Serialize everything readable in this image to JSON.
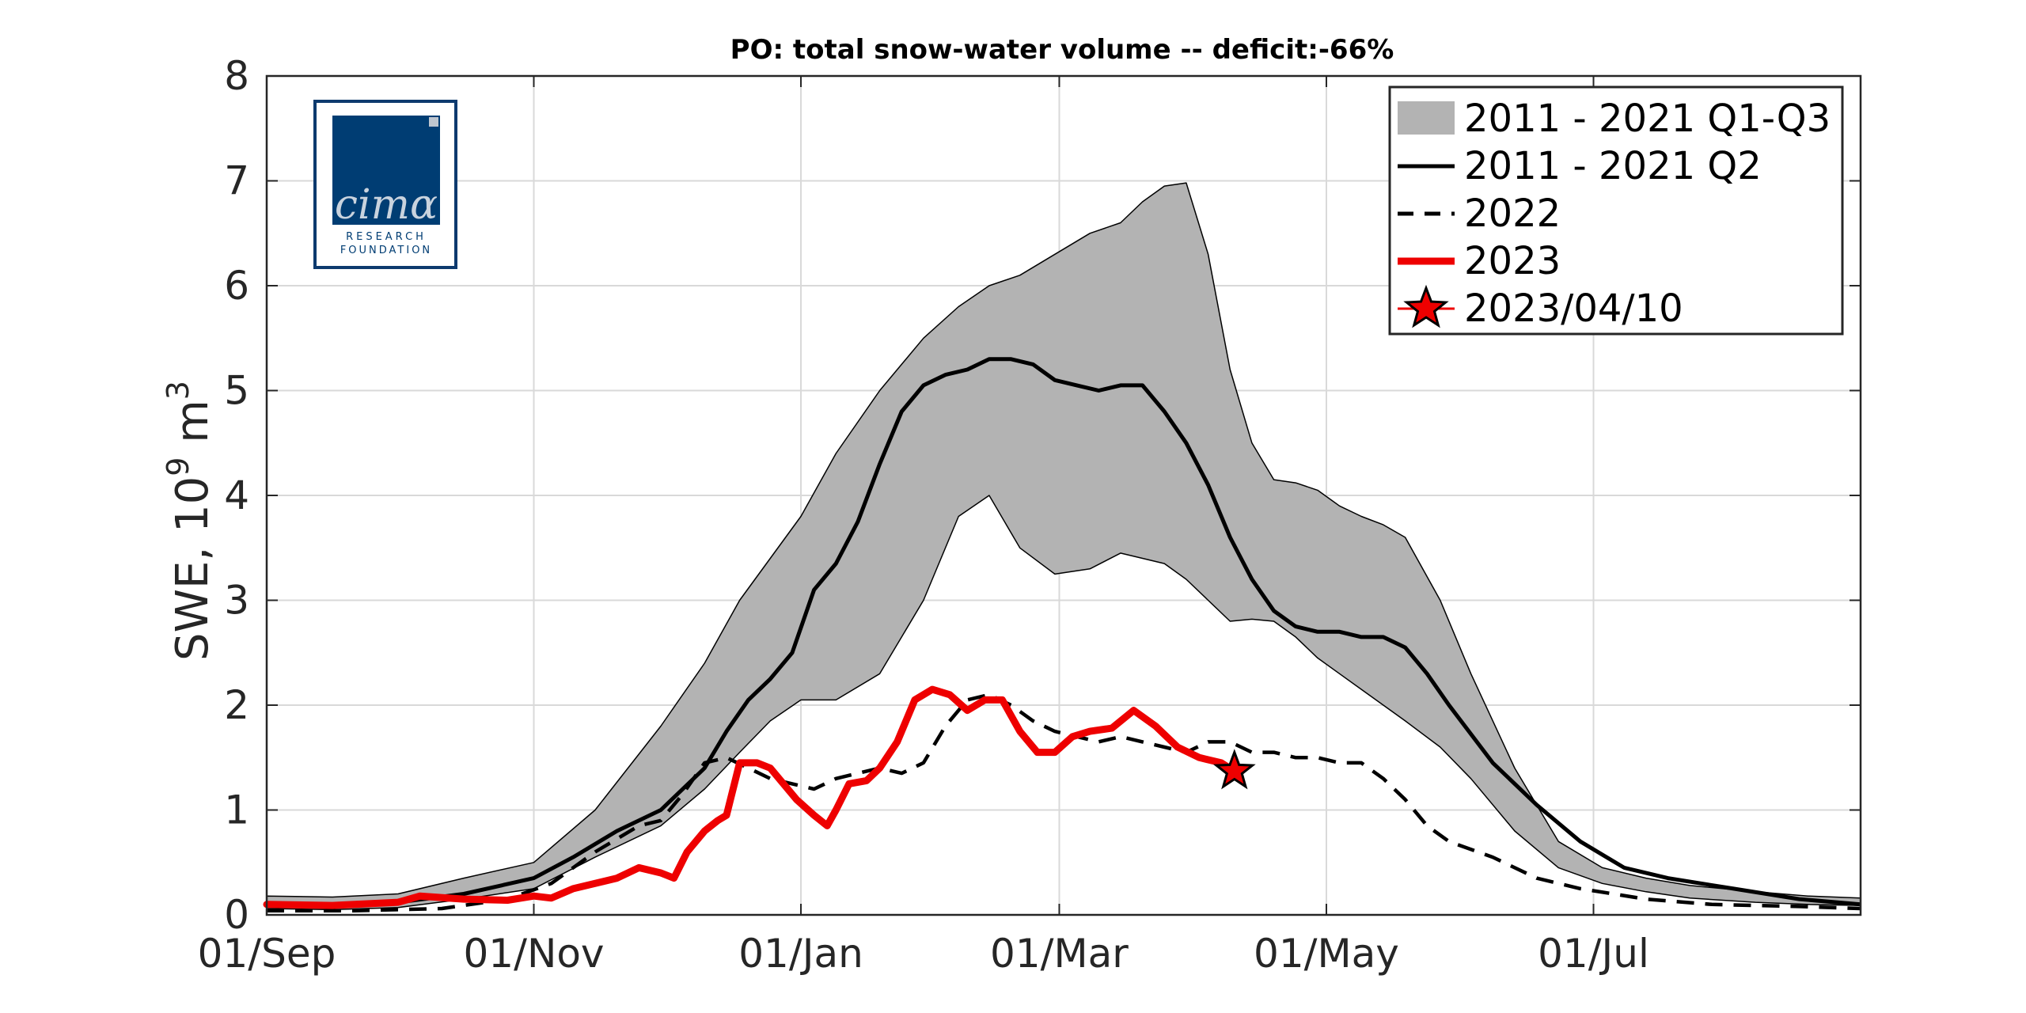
{
  "chart_data": {
    "type": "area",
    "title": "PO: total snow-water volume -- deficit:-66%",
    "xlabel": "",
    "ylabel": "SWE, 10",
    "ylabel_exponent": "9",
    "ylabel_unit": " m",
    "ylabel_unit_exponent": "3",
    "xlim": [
      0,
      364
    ],
    "ylim": [
      0,
      8
    ],
    "grid": true,
    "legend_position": "top-right",
    "x_ticks": [
      {
        "day": 0,
        "label": "01/Sep"
      },
      {
        "day": 61,
        "label": "01/Nov"
      },
      {
        "day": 122,
        "label": "01/Jan"
      },
      {
        "day": 181,
        "label": "01/Mar"
      },
      {
        "day": 242,
        "label": "01/May"
      },
      {
        "day": 303,
        "label": "01/Jul"
      }
    ],
    "x_grid_days": [
      0,
      61,
      122,
      181,
      242,
      303,
      364
    ],
    "y_ticks": [
      0,
      1,
      2,
      3,
      4,
      5,
      6,
      7,
      8
    ],
    "series": [
      {
        "name": "2011 - 2021 Q1-Q3",
        "kind": "band",
        "color": "#b3b3b3",
        "x": [
          0,
          15,
          30,
          45,
          61,
          75,
          90,
          100,
          108,
          115,
          122,
          130,
          140,
          150,
          158,
          165,
          172,
          180,
          188,
          195,
          200,
          205,
          210,
          215,
          220,
          225,
          230,
          235,
          240,
          245,
          250,
          255,
          260,
          268,
          275,
          285,
          295,
          305,
          315,
          325,
          340,
          352,
          364
        ],
        "upper": [
          0.18,
          0.17,
          0.2,
          0.35,
          0.5,
          1.0,
          1.8,
          2.4,
          3.0,
          3.4,
          3.8,
          4.4,
          5.0,
          5.5,
          5.8,
          6.0,
          6.1,
          6.3,
          6.5,
          6.6,
          6.8,
          6.95,
          6.98,
          6.3,
          5.2,
          4.5,
          4.15,
          4.12,
          4.05,
          3.9,
          3.8,
          3.72,
          3.6,
          3.0,
          2.3,
          1.4,
          0.7,
          0.45,
          0.35,
          0.28,
          0.22,
          0.18,
          0.16
        ],
        "lower": [
          0.06,
          0.05,
          0.07,
          0.15,
          0.25,
          0.55,
          0.85,
          1.2,
          1.55,
          1.85,
          2.05,
          2.05,
          2.3,
          3.0,
          3.8,
          4.0,
          3.5,
          3.25,
          3.3,
          3.45,
          3.4,
          3.35,
          3.2,
          3.0,
          2.8,
          2.82,
          2.8,
          2.65,
          2.45,
          2.3,
          2.15,
          2.0,
          1.85,
          1.6,
          1.3,
          0.8,
          0.45,
          0.3,
          0.22,
          0.16,
          0.12,
          0.1,
          0.09
        ]
      },
      {
        "name": "2011 - 2021 Q2",
        "kind": "line",
        "color": "#000000",
        "dash": "solid",
        "x": [
          0,
          15,
          30,
          45,
          61,
          70,
          80,
          90,
          100,
          105,
          110,
          115,
          120,
          125,
          130,
          135,
          140,
          145,
          150,
          155,
          160,
          165,
          170,
          175,
          180,
          185,
          190,
          195,
          200,
          205,
          210,
          215,
          220,
          225,
          230,
          235,
          240,
          245,
          250,
          255,
          260,
          265,
          270,
          280,
          290,
          300,
          310,
          320,
          335,
          350,
          364
        ],
        "y": [
          0.1,
          0.1,
          0.12,
          0.2,
          0.35,
          0.55,
          0.8,
          1.0,
          1.4,
          1.75,
          2.05,
          2.25,
          2.5,
          3.1,
          3.35,
          3.75,
          4.3,
          4.8,
          5.05,
          5.15,
          5.2,
          5.3,
          5.3,
          5.25,
          5.1,
          5.05,
          5.0,
          5.05,
          5.05,
          4.8,
          4.5,
          4.1,
          3.6,
          3.2,
          2.9,
          2.75,
          2.7,
          2.7,
          2.65,
          2.65,
          2.55,
          2.3,
          2.0,
          1.45,
          1.05,
          0.7,
          0.45,
          0.35,
          0.25,
          0.15,
          0.1
        ]
      },
      {
        "name": "2022",
        "kind": "line",
        "color": "#000000",
        "dash": "dashed",
        "x": [
          0,
          20,
          40,
          55,
          65,
          75,
          85,
          90,
          95,
          100,
          105,
          110,
          115,
          120,
          125,
          130,
          135,
          140,
          145,
          150,
          155,
          160,
          165,
          170,
          175,
          180,
          185,
          190,
          195,
          200,
          205,
          210,
          215,
          220,
          225,
          230,
          235,
          240,
          245,
          250,
          255,
          260,
          265,
          270,
          280,
          290,
          300,
          315,
          330,
          350,
          364
        ],
        "y": [
          0.04,
          0.04,
          0.06,
          0.15,
          0.3,
          0.6,
          0.85,
          0.9,
          1.15,
          1.45,
          1.5,
          1.4,
          1.3,
          1.25,
          1.2,
          1.3,
          1.35,
          1.4,
          1.35,
          1.45,
          1.8,
          2.05,
          2.1,
          2.0,
          1.85,
          1.75,
          1.7,
          1.65,
          1.7,
          1.65,
          1.6,
          1.55,
          1.65,
          1.65,
          1.55,
          1.55,
          1.5,
          1.5,
          1.45,
          1.45,
          1.3,
          1.1,
          0.85,
          0.7,
          0.55,
          0.35,
          0.25,
          0.15,
          0.1,
          0.08,
          0.06
        ]
      },
      {
        "name": "2023",
        "kind": "line",
        "color": "#ee0000",
        "dash": "solid",
        "x": [
          0,
          15,
          30,
          35,
          45,
          55,
          61,
          65,
          70,
          75,
          80,
          85,
          90,
          93,
          96,
          100,
          103,
          105,
          108,
          112,
          115,
          118,
          121,
          125,
          128,
          130,
          133,
          137,
          140,
          144,
          148,
          152,
          156,
          160,
          164,
          168,
          172,
          176,
          180,
          184,
          188,
          193,
          198,
          203,
          208,
          213,
          218,
          221
        ],
        "y": [
          0.1,
          0.09,
          0.12,
          0.18,
          0.15,
          0.14,
          0.18,
          0.16,
          0.25,
          0.3,
          0.35,
          0.45,
          0.4,
          0.35,
          0.6,
          0.8,
          0.9,
          0.95,
          1.45,
          1.45,
          1.4,
          1.25,
          1.1,
          0.95,
          0.85,
          1.0,
          1.25,
          1.28,
          1.4,
          1.65,
          2.05,
          2.15,
          2.1,
          1.95,
          2.05,
          2.05,
          1.75,
          1.55,
          1.55,
          1.7,
          1.75,
          1.78,
          1.95,
          1.8,
          1.6,
          1.5,
          1.45,
          1.37
        ]
      }
    ],
    "marker": {
      "name": "2023/04/10",
      "x": 221,
      "y": 1.37,
      "color": "#ee0000"
    }
  }
}
